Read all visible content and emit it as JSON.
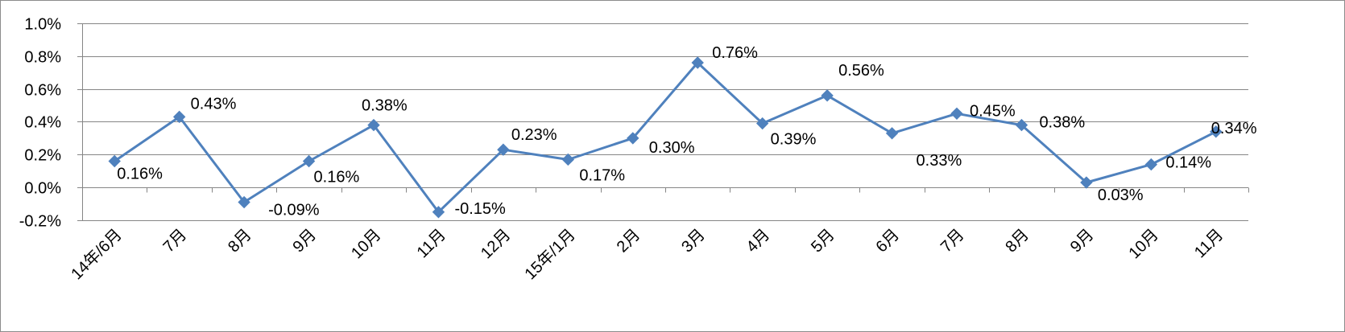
{
  "chart_data": {
    "type": "line",
    "title": "",
    "xlabel": "",
    "ylabel": "",
    "categories": [
      "14年/6月",
      "7月",
      "8月",
      "9月",
      "10月",
      "11月",
      "12月",
      "15年/1月",
      "2月",
      "3月",
      "4月",
      "5月",
      "6月",
      "7月",
      "8月",
      "9月",
      "10月",
      "11月"
    ],
    "series": [
      {
        "name": "",
        "color": "#4f81bd",
        "values": [
          0.16,
          0.43,
          -0.09,
          0.16,
          0.38,
          -0.15,
          0.23,
          0.17,
          0.3,
          0.76,
          0.39,
          0.56,
          0.33,
          0.45,
          0.38,
          0.03,
          0.14,
          0.34
        ],
        "labels": [
          "0.16%",
          "0.43%",
          "-0.09%",
          "0.16%",
          "0.38%",
          "-0.15%",
          "0.23%",
          "0.17%",
          "0.30%",
          "0.76%",
          "0.39%",
          "0.56%",
          "0.33%",
          "0.45%",
          "0.38%",
          "0.03%",
          "0.14%",
          "0.34%"
        ]
      }
    ],
    "y_ticks": [
      -0.2,
      0.0,
      0.2,
      0.4,
      0.6,
      0.8,
      1.0
    ],
    "y_tick_labels": [
      "-0.2%",
      "0.0%",
      "0.2%",
      "0.4%",
      "0.6%",
      "0.8%",
      "1.0%"
    ],
    "ylim": [
      -0.2,
      1.0
    ],
    "unit": "%",
    "grid": "horizontal",
    "legend": "none",
    "marker": "diamond"
  }
}
